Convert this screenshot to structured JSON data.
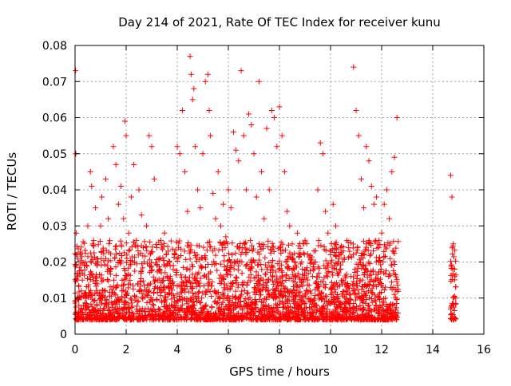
{
  "chart_data": {
    "type": "scatter",
    "title": "Day 214 of 2021, Rate Of TEC Index for receiver kunu",
    "xlabel": "GPS time / hours",
    "ylabel": "ROTI / TECUs",
    "xlim": [
      0,
      16
    ],
    "ylim": [
      0,
      0.08
    ],
    "x_ticks": [
      "0",
      "2",
      "4",
      "6",
      "8",
      "10",
      "12",
      "14",
      "16"
    ],
    "y_ticks": [
      "0",
      "0.01",
      "0.02",
      "0.03",
      "0.04",
      "0.05",
      "0.06",
      "0.07",
      "0.08"
    ],
    "grid": true,
    "marker": "+",
    "colors": {
      "points": "#ff0000",
      "grid": "#a0a0a0",
      "axes": "#000000"
    },
    "series": [
      {
        "name": "ROTI",
        "x": [
          0.02,
          0.03,
          0.05,
          0.08,
          0.1,
          0.15,
          0.2,
          0.25,
          0.3,
          0.4,
          0.5,
          0.6,
          0.65,
          0.7,
          0.8,
          0.9,
          1.0,
          1.05,
          1.1,
          1.2,
          1.3,
          1.4,
          1.5,
          1.6,
          1.7,
          1.8,
          1.9,
          1.95,
          2.0,
          2.1,
          2.2,
          2.3,
          2.4,
          2.5,
          2.6,
          2.7,
          2.8,
          2.9,
          3.0,
          3.1,
          3.2,
          3.3,
          3.4,
          3.5,
          3.6,
          3.7,
          3.8,
          3.9,
          4.0,
          4.1,
          4.2,
          4.3,
          4.4,
          4.5,
          4.55,
          4.6,
          4.65,
          4.7,
          4.8,
          4.9,
          5.0,
          5.1,
          5.2,
          5.25,
          5.3,
          5.4,
          5.5,
          5.6,
          5.7,
          5.8,
          5.9,
          6.0,
          6.1,
          6.2,
          6.3,
          6.4,
          6.5,
          6.6,
          6.7,
          6.8,
          6.9,
          7.0,
          7.1,
          7.2,
          7.3,
          7.4,
          7.5,
          7.6,
          7.7,
          7.8,
          7.9,
          8.0,
          8.1,
          8.2,
          8.3,
          8.4,
          8.5,
          8.6,
          8.7,
          8.8,
          8.9,
          9.0,
          9.1,
          9.2,
          9.3,
          9.4,
          9.5,
          9.6,
          9.7,
          9.8,
          9.9,
          10.0,
          10.1,
          10.2,
          10.3,
          10.4,
          10.5,
          10.6,
          10.7,
          10.8,
          10.9,
          11.0,
          11.1,
          11.2,
          11.3,
          11.4,
          11.5,
          11.6,
          11.7,
          11.8,
          11.9,
          12.0,
          12.1,
          12.2,
          12.3,
          12.4,
          12.5,
          12.6,
          14.7,
          14.75,
          14.8,
          14.85,
          14.9
        ],
        "y": [
          0.073,
          0.05,
          0.028,
          0.015,
          0.01,
          0.008,
          0.022,
          0.012,
          0.006,
          0.02,
          0.03,
          0.045,
          0.041,
          0.025,
          0.035,
          0.02,
          0.03,
          0.038,
          0.015,
          0.043,
          0.032,
          0.018,
          0.052,
          0.047,
          0.036,
          0.041,
          0.032,
          0.059,
          0.055,
          0.028,
          0.038,
          0.047,
          0.026,
          0.04,
          0.033,
          0.02,
          0.03,
          0.055,
          0.052,
          0.043,
          0.024,
          0.018,
          0.012,
          0.028,
          0.016,
          0.02,
          0.014,
          0.022,
          0.052,
          0.05,
          0.062,
          0.045,
          0.034,
          0.077,
          0.072,
          0.065,
          0.068,
          0.052,
          0.04,
          0.035,
          0.05,
          0.07,
          0.072,
          0.062,
          0.055,
          0.039,
          0.032,
          0.045,
          0.03,
          0.036,
          0.027,
          0.04,
          0.035,
          0.056,
          0.051,
          0.048,
          0.073,
          0.055,
          0.04,
          0.061,
          0.058,
          0.05,
          0.038,
          0.07,
          0.045,
          0.032,
          0.057,
          0.04,
          0.062,
          0.06,
          0.052,
          0.063,
          0.055,
          0.045,
          0.034,
          0.03,
          0.025,
          0.02,
          0.028,
          0.022,
          0.018,
          0.026,
          0.015,
          0.012,
          0.016,
          0.02,
          0.04,
          0.053,
          0.05,
          0.034,
          0.028,
          0.022,
          0.036,
          0.03,
          0.02,
          0.018,
          0.015,
          0.012,
          0.024,
          0.016,
          0.074,
          0.062,
          0.055,
          0.043,
          0.035,
          0.052,
          0.048,
          0.041,
          0.036,
          0.038,
          0.026,
          0.028,
          0.036,
          0.04,
          0.032,
          0.045,
          0.049,
          0.06,
          0.044,
          0.038,
          0.025,
          0.018,
          0.01
        ]
      }
    ]
  }
}
